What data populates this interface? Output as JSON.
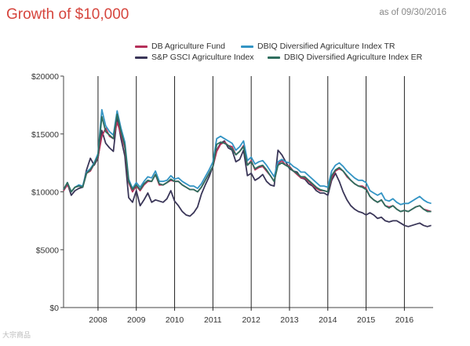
{
  "header": {
    "title": "Growth of $10,000",
    "as_of": "as of 09/30/2016"
  },
  "watermark": "大宗商品",
  "chart_data": {
    "type": "line",
    "title": "Growth of $10,000",
    "xlabel": "",
    "ylabel": "",
    "ylim": [
      0,
      20000
    ],
    "xlim": [
      2007.1,
      2016.75
    ],
    "yticks": [
      0,
      5000,
      10000,
      15000,
      20000
    ],
    "yticklabels": [
      "$0",
      "$5000",
      "$10000",
      "$15000",
      "$20000"
    ],
    "xticks": [
      2008,
      2009,
      2010,
      2011,
      2012,
      2013,
      2014,
      2015,
      2016
    ],
    "xticklabels": [
      "2008",
      "2009",
      "2010",
      "2011",
      "2012",
      "2013",
      "2014",
      "2015",
      "2016"
    ],
    "vertical_gridlines": true,
    "legend_position": "top",
    "x": [
      2007.1,
      2007.2,
      2007.3,
      2007.4,
      2007.5,
      2007.6,
      2007.7,
      2007.8,
      2007.9,
      2008.0,
      2008.1,
      2008.2,
      2008.3,
      2008.4,
      2008.5,
      2008.6,
      2008.7,
      2008.8,
      2008.9,
      2009.0,
      2009.1,
      2009.2,
      2009.3,
      2009.4,
      2009.5,
      2009.6,
      2009.7,
      2009.8,
      2009.9,
      2010.0,
      2010.1,
      2010.2,
      2010.3,
      2010.4,
      2010.5,
      2010.6,
      2010.7,
      2010.8,
      2010.9,
      2011.0,
      2011.1,
      2011.2,
      2011.3,
      2011.4,
      2011.5,
      2011.6,
      2011.7,
      2011.8,
      2011.9,
      2012.0,
      2012.1,
      2012.2,
      2012.3,
      2012.4,
      2012.5,
      2012.6,
      2012.7,
      2012.8,
      2012.9,
      2013.0,
      2013.1,
      2013.2,
      2013.3,
      2013.4,
      2013.5,
      2013.6,
      2013.7,
      2013.8,
      2013.9,
      2014.0,
      2014.1,
      2014.2,
      2014.3,
      2014.4,
      2014.5,
      2014.6,
      2014.7,
      2014.8,
      2014.9,
      2015.0,
      2015.1,
      2015.2,
      2015.3,
      2015.4,
      2015.5,
      2015.6,
      2015.7,
      2015.8,
      2015.9,
      2016.0,
      2016.1,
      2016.2,
      2016.3,
      2016.4,
      2016.5,
      2016.6,
      2016.7
    ],
    "series": [
      {
        "name": "DB Agriculture Fund",
        "color": "#b5305a",
        "values": [
          10100,
          10600,
          10000,
          10400,
          10500,
          10400,
          11600,
          11800,
          12400,
          13000,
          14800,
          15500,
          14800,
          14600,
          16000,
          15000,
          13800,
          10800,
          10000,
          10500,
          10100,
          10600,
          10900,
          10900,
          11500,
          10600,
          10600,
          10800,
          11000,
          10900,
          10900,
          10600,
          10400,
          10200,
          10200,
          10000,
          10400,
          11000,
          11600,
          12200,
          13500,
          14100,
          14300,
          14000,
          13900,
          13200,
          13500,
          14000,
          12300,
          12700,
          11900,
          12100,
          12200,
          11800,
          11400,
          10900,
          12400,
          12700,
          12300,
          12200,
          11800,
          11500,
          11200,
          11200,
          10900,
          10600,
          10300,
          10100,
          10100,
          10000,
          11200,
          11800,
          12000,
          11800,
          11300,
          11000,
          10700,
          10500,
          10500,
          10300,
          9600,
          9300,
          9100,
          9300,
          8800,
          8700,
          8800,
          8500,
          8300,
          8400,
          8300,
          8500,
          8700,
          8800,
          8500,
          8400,
          8300
        ]
      },
      {
        "name": "S&P GSCI Agriculture Index",
        "color": "#3a3658",
        "values": [
          10100,
          10700,
          9700,
          10100,
          10300,
          10400,
          11900,
          12900,
          12300,
          12900,
          15300,
          14200,
          13800,
          13500,
          16500,
          14600,
          13100,
          9500,
          9100,
          10100,
          8800,
          9300,
          9900,
          9100,
          9300,
          9200,
          9100,
          9400,
          10100,
          9200,
          8800,
          8300,
          8000,
          7900,
          8200,
          8700,
          9800,
          10600,
          11300,
          12200,
          13600,
          14200,
          14400,
          13800,
          13600,
          12600,
          12800,
          13600,
          11400,
          11600,
          11000,
          11200,
          11500,
          10900,
          10600,
          10500,
          13600,
          13200,
          12600,
          12000,
          11800,
          11700,
          11200,
          11100,
          10700,
          10500,
          10100,
          9900,
          9900,
          9700,
          11000,
          11600,
          10900,
          10000,
          9300,
          8800,
          8500,
          8300,
          8200,
          8000,
          8200,
          8000,
          7700,
          7800,
          7500,
          7400,
          7500,
          7500,
          7300,
          7100,
          7000,
          7100,
          7200,
          7300,
          7100,
          7000,
          7100
        ]
      },
      {
        "name": "DBIQ Diversified Agriculture Index TR",
        "color": "#3394c4",
        "values": [
          10200,
          10800,
          10000,
          10400,
          10600,
          10500,
          11700,
          12000,
          12500,
          13300,
          17100,
          15700,
          15200,
          14900,
          17000,
          15500,
          14300,
          11100,
          10300,
          10800,
          10400,
          10900,
          11300,
          11200,
          11800,
          10900,
          10900,
          11000,
          11400,
          11100,
          11200,
          10900,
          10700,
          10500,
          10500,
          10300,
          10700,
          11300,
          11900,
          12600,
          14600,
          14800,
          14600,
          14400,
          14200,
          13600,
          13900,
          14400,
          12700,
          13000,
          12400,
          12600,
          12700,
          12300,
          11800,
          11300,
          12600,
          12800,
          12600,
          12500,
          12200,
          12000,
          11700,
          11700,
          11400,
          11100,
          10800,
          10500,
          10500,
          10400,
          11800,
          12300,
          12500,
          12200,
          11800,
          11500,
          11200,
          11000,
          11000,
          10800,
          10100,
          9900,
          9700,
          9900,
          9300,
          9200,
          9400,
          9100,
          8900,
          9000,
          9000,
          9200,
          9400,
          9600,
          9300,
          9100,
          9000
        ]
      },
      {
        "name": "DBIQ Diversified Agriculture Index ER",
        "color": "#2f6e5e",
        "values": [
          10200,
          10800,
          10000,
          10400,
          10500,
          10400,
          11600,
          11900,
          12400,
          13100,
          16500,
          15200,
          14900,
          14600,
          16700,
          15200,
          14000,
          10900,
          10200,
          10600,
          10200,
          10700,
          11000,
          10900,
          11500,
          10700,
          10600,
          10800,
          11100,
          10900,
          10900,
          10600,
          10400,
          10200,
          10200,
          10000,
          10400,
          11000,
          11600,
          12200,
          14100,
          14300,
          14200,
          14000,
          13700,
          13200,
          13500,
          13900,
          12300,
          12600,
          12000,
          12200,
          12300,
          11900,
          11400,
          10900,
          12300,
          12500,
          12300,
          12100,
          11800,
          11600,
          11300,
          11300,
          11000,
          10700,
          10400,
          10200,
          10100,
          10000,
          11400,
          11900,
          12100,
          11800,
          11400,
          11000,
          10700,
          10500,
          10400,
          10200,
          9600,
          9300,
          9100,
          9300,
          8800,
          8600,
          8800,
          8500,
          8300,
          8400,
          8300,
          8500,
          8700,
          8800,
          8500,
          8300,
          8300
        ]
      }
    ]
  }
}
